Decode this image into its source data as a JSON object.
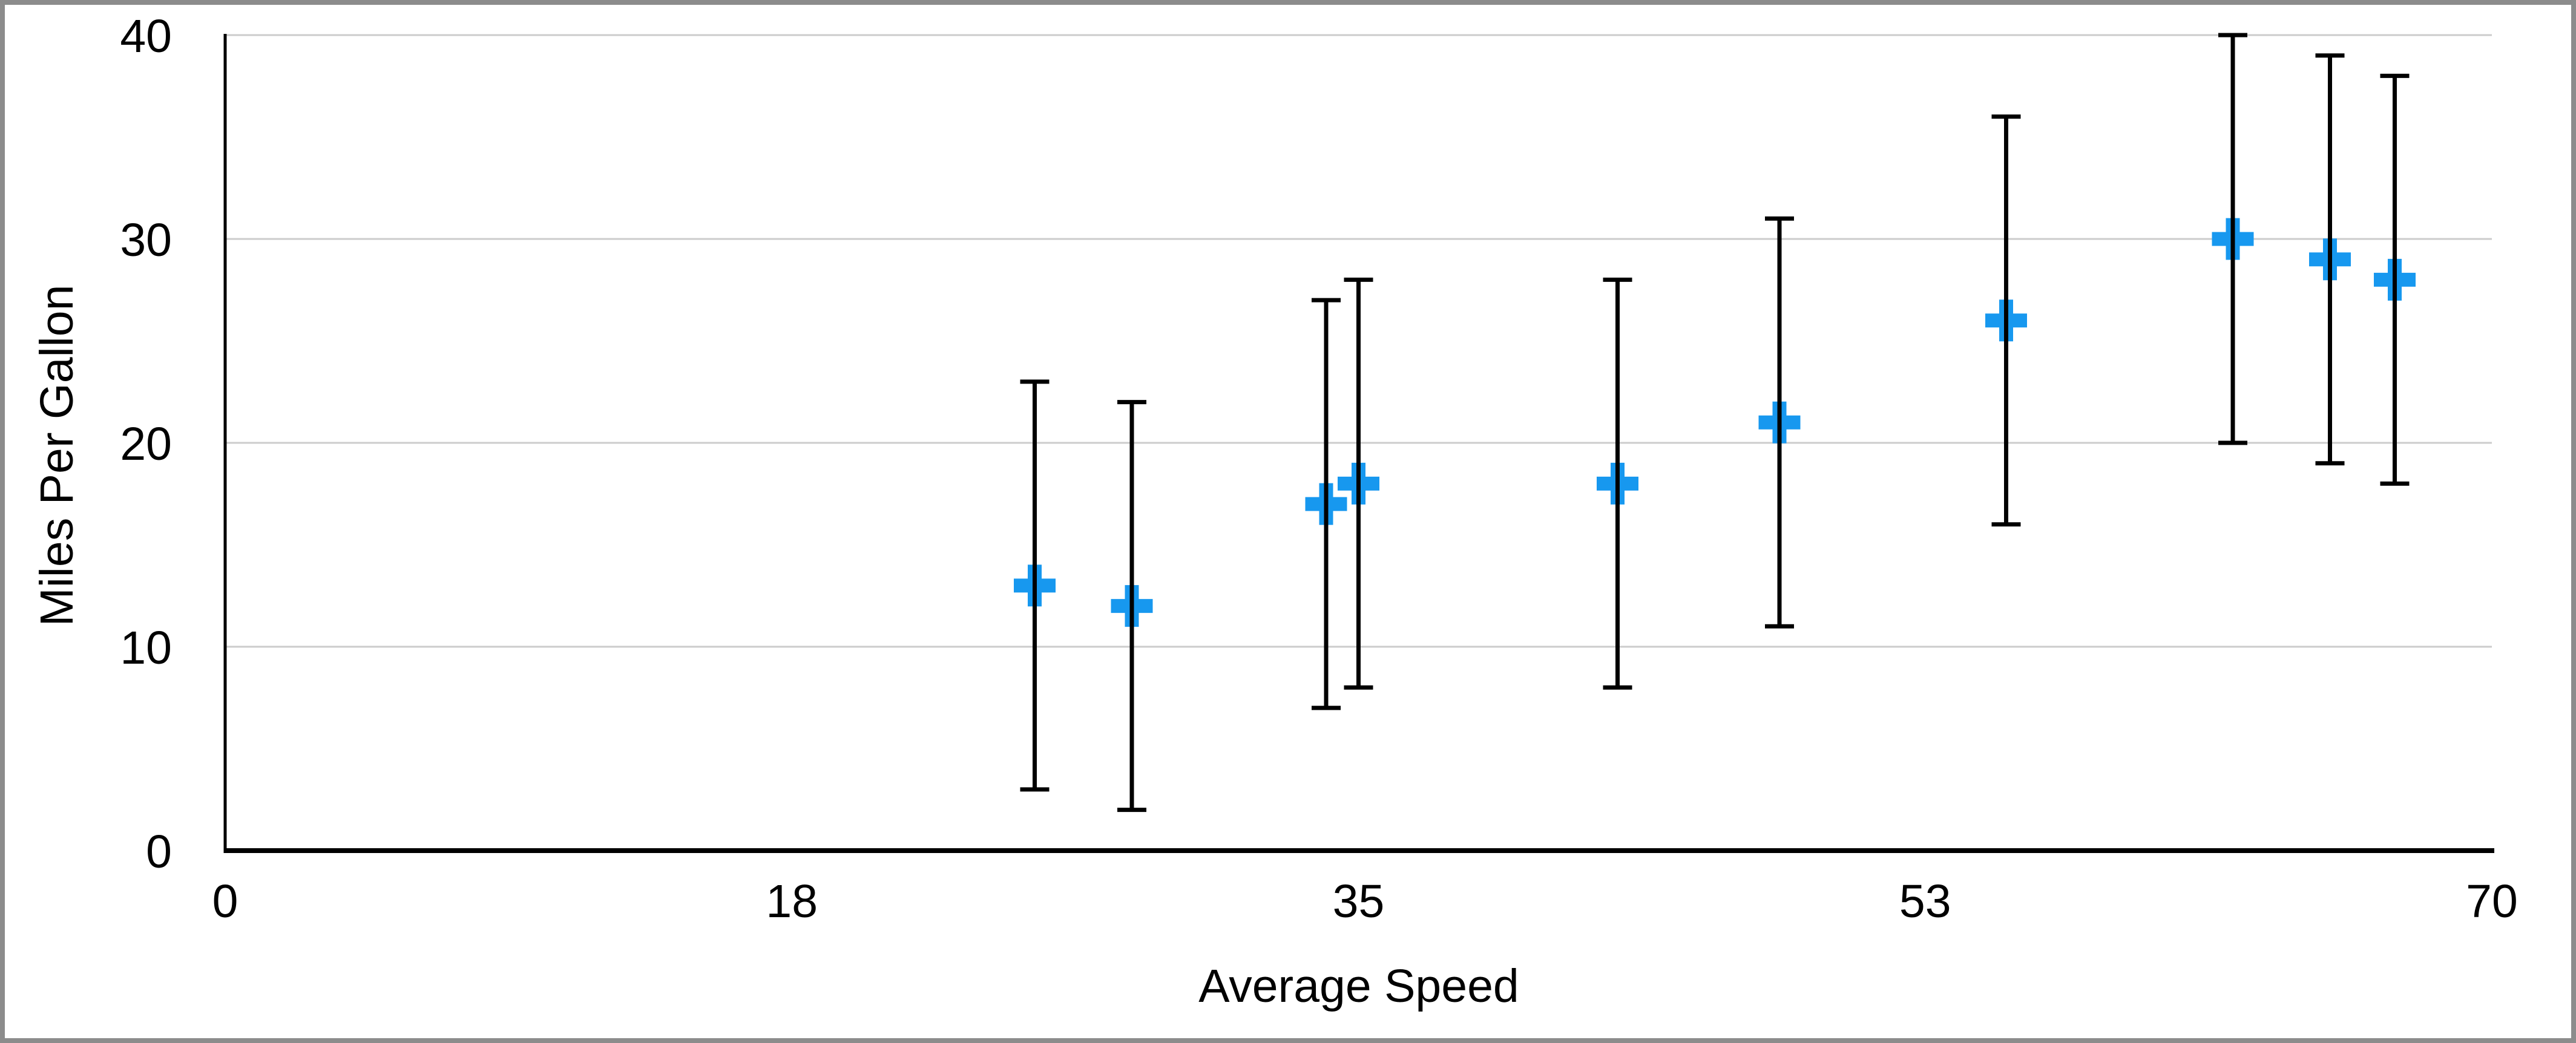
{
  "canvas": {
    "background": "#FFFFFF",
    "border_color": "#8C8C8C"
  },
  "chart_data": {
    "type": "scatter",
    "title": "",
    "xlabel": "Average Speed",
    "ylabel": "Miles Per Gallon",
    "xlim": [
      0,
      70
    ],
    "ylim": [
      0,
      40
    ],
    "grid": "horizontal",
    "legend_position": "none",
    "axis_color": "#000000",
    "gridline_color": "#CCCCCC",
    "tick_label_color": "#000000",
    "x_ticks": [
      {
        "value": 0,
        "label": "0"
      },
      {
        "value": 17.5,
        "label": "18"
      },
      {
        "value": 35,
        "label": "35"
      },
      {
        "value": 52.5,
        "label": "53"
      },
      {
        "value": 70,
        "label": "70"
      }
    ],
    "y_ticks": [
      {
        "value": 0,
        "label": "0"
      },
      {
        "value": 10,
        "label": "10"
      },
      {
        "value": 20,
        "label": "20"
      },
      {
        "value": 30,
        "label": "30"
      },
      {
        "value": 40,
        "label": "40"
      }
    ],
    "marker": {
      "shape": "plus",
      "color": "#1798EF",
      "size": 69,
      "arm_thickness": 23
    },
    "error_bars": {
      "color": "#000000",
      "line_width": 7,
      "cap_width": 48,
      "direction": "vertical"
    },
    "series": [
      {
        "name": "Miles Per Gallon",
        "points": [
          {
            "x": 25,
            "y": 13,
            "error_minus": 10,
            "error_plus": 10
          },
          {
            "x": 28,
            "y": 12,
            "error_minus": 10,
            "error_plus": 10
          },
          {
            "x": 34,
            "y": 17,
            "error_minus": 10,
            "error_plus": 10
          },
          {
            "x": 35,
            "y": 18,
            "error_minus": 10,
            "error_plus": 10
          },
          {
            "x": 43,
            "y": 18,
            "error_minus": 10,
            "error_plus": 10
          },
          {
            "x": 48,
            "y": 21,
            "error_minus": 10,
            "error_plus": 10
          },
          {
            "x": 55,
            "y": 26,
            "error_minus": 10,
            "error_plus": 10
          },
          {
            "x": 62,
            "y": 30,
            "error_minus": 10,
            "error_plus": 10
          },
          {
            "x": 65,
            "y": 29,
            "error_minus": 10,
            "error_plus": 10
          },
          {
            "x": 67,
            "y": 28,
            "error_minus": 10,
            "error_plus": 10
          }
        ]
      }
    ]
  }
}
